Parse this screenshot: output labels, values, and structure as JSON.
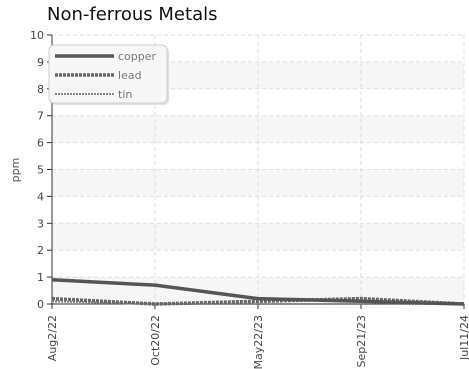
{
  "chart_data": {
    "type": "line",
    "title": "Non-ferrous Metals",
    "ylabel": "ppm",
    "xlabel": "",
    "ylim": [
      0,
      10
    ],
    "yticks": [
      0,
      1,
      2,
      3,
      4,
      5,
      6,
      7,
      8,
      9,
      10
    ],
    "x": [
      "Aug2/22",
      "Oct20/22",
      "May22/23",
      "Sep21/23",
      "Jul11/24"
    ],
    "grid": true,
    "legend_position": "top-left",
    "series": [
      {
        "name": "copper",
        "values": [
          0.9,
          0.7,
          0.2,
          0.1,
          0.0
        ],
        "color": "#555555",
        "style": "solid"
      },
      {
        "name": "lead",
        "values": [
          0.2,
          0.0,
          0.1,
          0.2,
          0.0
        ],
        "color": "#666666",
        "style": "dashed"
      },
      {
        "name": "tin",
        "values": [
          0.1,
          0.0,
          0.0,
          0.0,
          0.0
        ],
        "color": "#888888",
        "style": "dotted"
      }
    ]
  }
}
